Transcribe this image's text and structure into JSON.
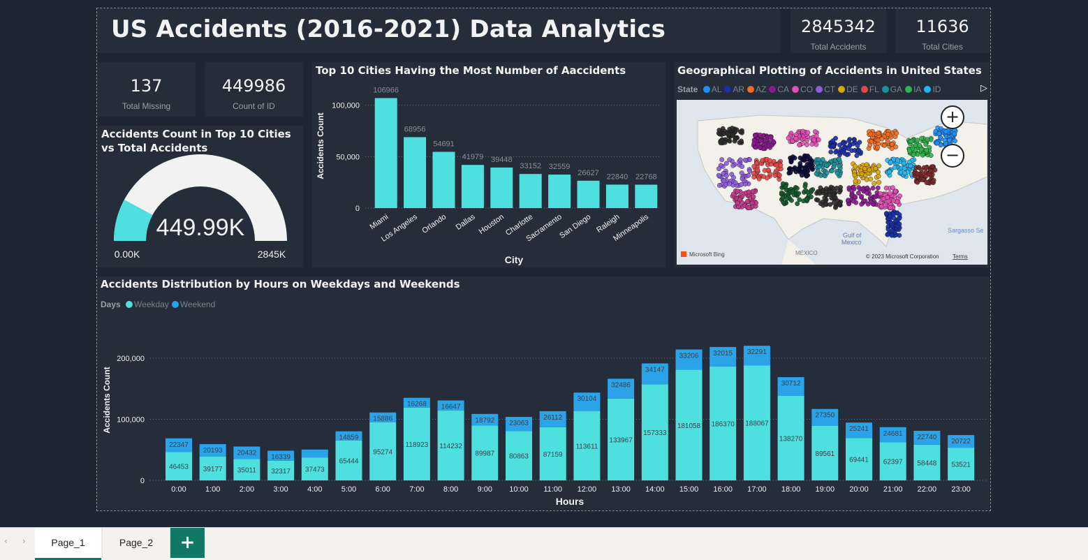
{
  "report": {
    "title": "US Accidents (2016-2021) Data Analytics"
  },
  "kpis": {
    "total_accidents": {
      "value": "2845342",
      "label": "Total Accidents"
    },
    "total_cities": {
      "value": "11636",
      "label": "Total Cities"
    },
    "total_missing": {
      "value": "137",
      "label": "Total Missing"
    },
    "count_of_id": {
      "value": "449986",
      "label": "Count of ID"
    }
  },
  "gauge": {
    "title": "Accidents Count in Top 10 Cities vs Total Accidents",
    "value_label": "449.99K",
    "min_label": "0.00K",
    "max_label": "2845K",
    "value": 449986,
    "min": 0,
    "max": 2845342,
    "fill_color": "#4ee0df",
    "track_color": "#f2f2f2"
  },
  "map": {
    "title": "Geographical Plotting of Accidents in United States",
    "legend_label": "State",
    "legend": [
      {
        "name": "AL",
        "color": "#1e90ff"
      },
      {
        "name": "AR",
        "color": "#1a2fa8"
      },
      {
        "name": "AZ",
        "color": "#f26b22"
      },
      {
        "name": "CA",
        "color": "#8a1a8f"
      },
      {
        "name": "CO",
        "color": "#e44cb6"
      },
      {
        "name": "CT",
        "color": "#8e5be0"
      },
      {
        "name": "DE",
        "color": "#d8a40c"
      },
      {
        "name": "FL",
        "color": "#e14848"
      },
      {
        "name": "GA",
        "color": "#1e8f9a"
      },
      {
        "name": "IA",
        "color": "#2fb44a"
      },
      {
        "name": "ID",
        "color": "#22b7f2"
      }
    ],
    "labels": {
      "gulf": "Gulf of\nMexico",
      "mexico": "MEXICO",
      "sargasso": "Sargasso Se",
      "bing": "Microsoft Bing",
      "copyright": "© 2023 Microsoft Corporation",
      "terms": "Terms"
    },
    "zoom_in": "+",
    "zoom_out": "−"
  },
  "tabs": {
    "page1": "Page_1",
    "page2": "Page_2",
    "add": "+"
  },
  "chart_data": [
    {
      "type": "bar",
      "title": "Top 10 Cities Having the Most Number of Aaccidents",
      "xlabel": "City",
      "ylabel": "Accidents Count",
      "categories": [
        "Miami",
        "Los Angeles",
        "Orlando",
        "Dallas",
        "Houston",
        "Charlotte",
        "Sacramento",
        "San Diego",
        "Raleigh",
        "Minneapolis"
      ],
      "values": [
        106966,
        68956,
        54691,
        41979,
        39448,
        33152,
        32559,
        26627,
        22840,
        22768
      ],
      "yticks": [
        "0",
        "50,000",
        "100,000"
      ],
      "ylim": [
        0,
        110000
      ],
      "grid": true,
      "color": "#4ee0df"
    },
    {
      "type": "bar",
      "stacked": true,
      "title": "Accidents Distribution by Hours on Weekdays and Weekends",
      "xlabel": "Hours",
      "ylabel": "Accidents Count",
      "legend_label": "Days",
      "categories": [
        "0:00",
        "1:00",
        "2:00",
        "3:00",
        "4:00",
        "5:00",
        "6:00",
        "7:00",
        "8:00",
        "9:00",
        "10:00",
        "11:00",
        "12:00",
        "13:00",
        "14:00",
        "15:00",
        "16:00",
        "17:00",
        "18:00",
        "19:00",
        "20:00",
        "21:00",
        "22:00",
        "23:00"
      ],
      "series": [
        {
          "name": "Weekday",
          "color": "#4ee0df",
          "values": [
            46453,
            39177,
            35011,
            32317,
            37473,
            65444,
            95274,
            118923,
            114232,
            89987,
            80863,
            87159,
            113611,
            133967,
            157333,
            181058,
            186370,
            188067,
            138270,
            89561,
            69441,
            62397,
            58448,
            53521
          ]
        },
        {
          "name": "Weekend",
          "color": "#2aa3e8",
          "values": [
            22347,
            20193,
            20432,
            16339,
            13000,
            14859,
            15886,
            16268,
            16647,
            18792,
            23063,
            26112,
            30104,
            32486,
            34147,
            33206,
            32015,
            32291,
            30712,
            27350,
            25241,
            24681,
            22740,
            20722
          ]
        }
      ],
      "labels_hidden_at": [
        [],
        [
          4
        ]
      ],
      "yticks": [
        "0",
        "100,000",
        "200,000"
      ],
      "ylim": [
        0,
        240000
      ],
      "grid": true
    }
  ]
}
